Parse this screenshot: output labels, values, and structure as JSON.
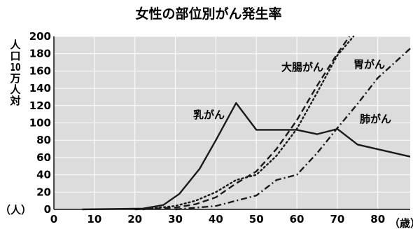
{
  "chart_data": {
    "type": "line",
    "title": "女性の部位別がん発生率",
    "ylabel": "人口10万人対",
    "ylabel_chars": [
      "人",
      "口",
      "10",
      "万",
      "人",
      "対"
    ],
    "y_unit": "（人）",
    "x_unit": "（歳）",
    "xlim": [
      0,
      88
    ],
    "ylim": [
      0,
      200
    ],
    "x_ticks": [
      0,
      10,
      20,
      30,
      40,
      50,
      60,
      70,
      80
    ],
    "y_ticks": [
      0,
      20,
      40,
      60,
      80,
      100,
      120,
      140,
      160,
      180,
      200
    ],
    "grid": true,
    "series": [
      {
        "name": "乳がん",
        "style": "solid",
        "points": [
          [
            7,
            0
          ],
          [
            22,
            1
          ],
          [
            27,
            5
          ],
          [
            31,
            18
          ],
          [
            36,
            47
          ],
          [
            40,
            80
          ],
          [
            45,
            123
          ],
          [
            50,
            92
          ],
          [
            60,
            92
          ],
          [
            65,
            87
          ],
          [
            70,
            93
          ],
          [
            75,
            75
          ],
          [
            88,
            61
          ]
        ]
      },
      {
        "name": "大腸がん",
        "style": "dash",
        "points": [
          [
            20,
            0
          ],
          [
            30,
            2
          ],
          [
            35,
            6
          ],
          [
            40,
            14
          ],
          [
            45,
            30
          ],
          [
            50,
            44
          ],
          [
            55,
            70
          ],
          [
            60,
            103
          ],
          [
            65,
            143
          ],
          [
            70,
            180
          ],
          [
            73,
            200
          ]
        ]
      },
      {
        "name": "胃がん",
        "style": "dot",
        "points": [
          [
            22,
            0
          ],
          [
            30,
            4
          ],
          [
            35,
            10
          ],
          [
            40,
            20
          ],
          [
            45,
            34
          ],
          [
            50,
            40
          ],
          [
            55,
            62
          ],
          [
            60,
            93
          ],
          [
            65,
            135
          ],
          [
            70,
            178
          ],
          [
            74,
            200
          ]
        ]
      },
      {
        "name": "肺がん",
        "style": "dashdot",
        "points": [
          [
            30,
            0
          ],
          [
            40,
            4
          ],
          [
            45,
            10
          ],
          [
            50,
            16
          ],
          [
            55,
            34
          ],
          [
            60,
            40
          ],
          [
            65,
            65
          ],
          [
            70,
            94
          ],
          [
            75,
            122
          ],
          [
            80,
            152
          ],
          [
            88,
            186
          ]
        ]
      }
    ]
  }
}
